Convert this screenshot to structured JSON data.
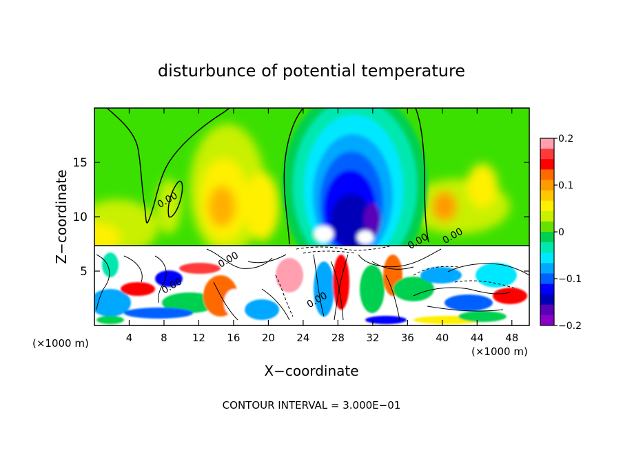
{
  "chart_data": {
    "type": "heatmap",
    "title": "disturbunce of potential temperature",
    "xlabel": "X−coordinate",
    "ylabel": "Z−coordinate",
    "x_unit": "(×1000 m)",
    "x_unit_right": "(×1000 m)",
    "xlim": [
      0,
      50
    ],
    "ylim": [
      0,
      20
    ],
    "x_ticks": [
      4,
      8,
      12,
      16,
      20,
      24,
      28,
      32,
      36,
      40,
      44,
      48
    ],
    "x_tick_labels": [
      "4",
      "8",
      "12",
      "16",
      "20",
      "24",
      "28",
      "32",
      "36",
      "40",
      "44",
      "48"
    ],
    "y_ticks": [
      5,
      10,
      15
    ],
    "y_tick_labels": [
      "5",
      "10",
      "15"
    ],
    "colorbar": {
      "range": [
        -0.2,
        0.2
      ],
      "ticks": [
        0.2,
        0.1,
        0,
        -0.1,
        -0.2
      ],
      "tick_labels": [
        "0.2",
        "0.1",
        "0",
        "−0.1",
        "−0.2"
      ],
      "colors": [
        "#ff9fb0",
        "#ff3a3a",
        "#ff0000",
        "#ff6a00",
        "#ff9a00",
        "#ffc800",
        "#fff000",
        "#c8f000",
        "#66e000",
        "#00d050",
        "#00e8b0",
        "#00e8ff",
        "#00a8ff",
        "#0060ff",
        "#0000ff",
        "#0000b8",
        "#5a00b8",
        "#8a00c8"
      ]
    },
    "contour_labels": [
      {
        "x": 7.5,
        "y": 10.8,
        "text": "0.00"
      },
      {
        "x": 14.5,
        "y": 5.3,
        "text": "0.00"
      },
      {
        "x": 8,
        "y": 2.9,
        "text": "0.00"
      },
      {
        "x": 24.7,
        "y": 1.6,
        "text": "0.00"
      },
      {
        "x": 36.3,
        "y": 7.0,
        "text": "0.00"
      },
      {
        "x": 40.3,
        "y": 7.5,
        "text": "0.00"
      }
    ],
    "grid": false,
    "legend": "colorbar-right"
  },
  "footer": {
    "contour_interval": "CONTOUR INTERVAL = 3.000E−01"
  }
}
